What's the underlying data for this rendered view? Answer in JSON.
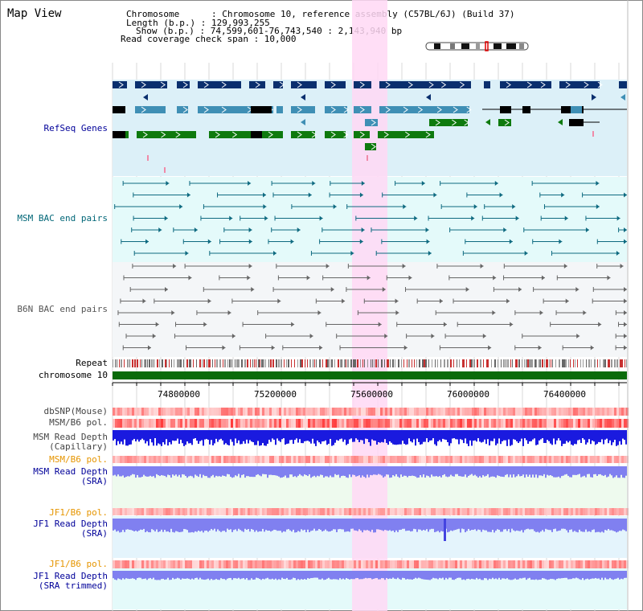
{
  "header": {
    "title": "Map View",
    "info_lines": [
      "Chromosome      : Chromosome 10, reference assembly (C57BL/6J) (Build 37)",
      "Length (b.p.) : 129,993,255",
      "Show (b.p.) : 74,599,601-76,743,540 : 2,143,940 bp",
      "Read coverage check span : 10,000"
    ]
  },
  "tracks": {
    "refseq": "RefSeq Genes",
    "msm_bac": "MSM BAC end pairs",
    "b6n_bac": "B6N BAC end pairs",
    "repeat": "Repeat",
    "chromosome": "chromosome 10",
    "dbsnp": "dbSNP(Mouse)",
    "msm_b6_pol": "MSM/B6 pol.",
    "msm_depth_cap_1": "MSM Read Depth",
    "msm_depth_cap_2": "(Capillary)",
    "msm_b6_pol_2": "MSM/B6 pol.",
    "msm_depth_sra_1": "MSM Read Depth",
    "msm_depth_sra_2": "(SRA)",
    "jf1_b6_pol": "JF1/B6 pol.",
    "jf1_depth_sra_1": "JF1 Read Depth",
    "jf1_depth_sra_2": "(SRA)",
    "jf1_b6_pol_2": "JF1/B6 pol.",
    "jf1_depth_trim_1": "JF1 Read Depth",
    "jf1_depth_trim_2": "(SRA trimmed)"
  },
  "axis": {
    "ticks": [
      "74800000",
      "75200000",
      "75600000",
      "76000000",
      "76400000"
    ]
  },
  "colors": {
    "refseq_bg": "#dcf0f8",
    "msm_bg": "#e4fafa",
    "b6n_bg": "#f4f6f8",
    "highlight": "#ffd8f4",
    "chromosome": "#0a6b0a",
    "gene_dark": "#0a2f6e",
    "gene_mid": "#3f8fb5",
    "gene_green": "#0e7a0e",
    "depth_blue": "#1a1adf",
    "depth_lilac": "#8080f0",
    "pol_red": "#ef4040",
    "pol_pink": "#f5a0a0"
  }
}
